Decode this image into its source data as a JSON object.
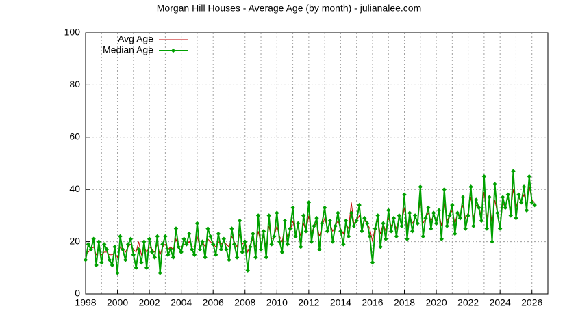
{
  "chart_data": {
    "type": "line",
    "title": "Morgan Hill Houses - Average Age (by month) - julianalee.com",
    "x": [
      1998,
      1998.17,
      1998.33,
      1998.5,
      1998.67,
      1998.83,
      1999,
      1999.17,
      1999.33,
      1999.5,
      1999.67,
      1999.83,
      2000,
      2000.17,
      2000.33,
      2000.5,
      2000.67,
      2000.83,
      2001,
      2001.17,
      2001.33,
      2001.5,
      2001.67,
      2001.83,
      2002,
      2002.17,
      2002.33,
      2002.5,
      2002.67,
      2002.83,
      2003,
      2003.17,
      2003.33,
      2003.5,
      2003.67,
      2003.83,
      2004,
      2004.17,
      2004.33,
      2004.5,
      2004.67,
      2004.83,
      2005,
      2005.17,
      2005.33,
      2005.5,
      2005.67,
      2005.83,
      2006,
      2006.17,
      2006.33,
      2006.5,
      2006.67,
      2006.83,
      2007,
      2007.17,
      2007.33,
      2007.5,
      2007.67,
      2007.83,
      2008,
      2008.17,
      2008.33,
      2008.5,
      2008.67,
      2008.83,
      2009,
      2009.17,
      2009.33,
      2009.5,
      2009.67,
      2009.83,
      2010,
      2010.17,
      2010.33,
      2010.5,
      2010.67,
      2010.83,
      2011,
      2011.17,
      2011.33,
      2011.5,
      2011.67,
      2011.83,
      2012,
      2012.17,
      2012.33,
      2012.5,
      2012.67,
      2012.83,
      2013,
      2013.17,
      2013.33,
      2013.5,
      2013.67,
      2013.83,
      2014,
      2014.17,
      2014.33,
      2014.5,
      2014.67,
      2014.83,
      2015,
      2015.17,
      2015.33,
      2015.5,
      2015.67,
      2015.83,
      2016,
      2016.17,
      2016.33,
      2016.5,
      2016.67,
      2016.83,
      2017,
      2017.17,
      2017.33,
      2017.5,
      2017.67,
      2017.83,
      2018,
      2018.17,
      2018.33,
      2018.5,
      2018.67,
      2018.83,
      2019,
      2019.17,
      2019.33,
      2019.5,
      2019.67,
      2019.83,
      2020,
      2020.17,
      2020.33,
      2020.5,
      2020.67,
      2020.83,
      2021,
      2021.17,
      2021.33,
      2021.5,
      2021.67,
      2021.83,
      2022,
      2022.17,
      2022.33,
      2022.5,
      2022.67,
      2022.83,
      2023,
      2023.17,
      2023.33,
      2023.5,
      2023.67,
      2023.83,
      2024,
      2024.17,
      2024.33,
      2024.5,
      2024.67,
      2024.83,
      2025,
      2025.17,
      2025.33,
      2025.5,
      2025.67,
      2025.83,
      2026,
      2026.17
    ],
    "series": [
      {
        "name": "Avg Age",
        "color": "#c00000",
        "markers": false,
        "values": [
          15,
          16,
          17,
          18,
          15,
          17,
          15,
          16,
          16,
          15,
          15,
          16,
          14,
          18,
          17,
          16,
          18,
          19,
          17,
          16,
          20,
          15,
          18,
          16,
          18,
          17,
          16,
          19,
          15,
          18,
          19,
          17,
          18,
          17,
          21,
          18,
          18,
          19,
          19,
          20,
          18,
          18,
          22,
          18,
          20,
          18,
          21,
          20,
          19,
          18,
          20,
          19,
          20,
          19,
          18,
          22,
          20,
          18,
          23,
          19,
          20,
          16,
          19,
          21,
          18,
          24,
          19,
          22,
          18,
          26,
          21,
          22,
          26,
          22,
          20,
          26,
          22,
          24,
          28,
          23,
          26,
          22,
          27,
          24,
          30,
          23,
          26,
          27,
          22,
          26,
          29,
          25,
          27,
          24,
          26,
          28,
          25,
          23,
          27,
          25,
          35,
          27,
          28,
          30,
          26,
          28,
          27,
          25,
          20,
          26,
          28,
          23,
          27,
          24,
          29,
          26,
          28,
          25,
          29,
          27,
          33,
          25,
          30,
          27,
          29,
          28,
          36,
          27,
          29,
          31,
          28,
          30,
          28,
          31,
          26,
          35,
          28,
          30,
          32,
          27,
          31,
          30,
          34,
          29,
          31,
          37,
          29,
          34,
          33,
          30,
          39,
          29,
          35,
          27,
          36,
          31,
          25,
          35,
          33,
          37,
          32,
          40,
          33,
          37,
          35,
          38,
          34,
          41,
          36,
          35
        ]
      },
      {
        "name": "Median Age",
        "color": "#00a000",
        "markers": true,
        "values": [
          13,
          19,
          17,
          21,
          11,
          20,
          12,
          19,
          17,
          13,
          11,
          18,
          8,
          22,
          17,
          13,
          19,
          21,
          15,
          10,
          17,
          12,
          20,
          10,
          21,
          16,
          14,
          22,
          8,
          19,
          22,
          15,
          17,
          14,
          25,
          18,
          16,
          21,
          19,
          23,
          17,
          15,
          27,
          17,
          20,
          14,
          25,
          22,
          19,
          15,
          23,
          17,
          21,
          17,
          13,
          25,
          19,
          14,
          28,
          16,
          20,
          9,
          18,
          23,
          14,
          30,
          17,
          24,
          14,
          30,
          19,
          22,
          31,
          20,
          16,
          28,
          19,
          25,
          33,
          22,
          27,
          18,
          30,
          24,
          35,
          20,
          26,
          29,
          17,
          27,
          33,
          24,
          28,
          20,
          26,
          31,
          24,
          19,
          28,
          22,
          31,
          26,
          28,
          34,
          24,
          29,
          27,
          22,
          12,
          25,
          30,
          18,
          27,
          21,
          32,
          24,
          29,
          22,
          30,
          26,
          38,
          21,
          31,
          24,
          30,
          27,
          41,
          22,
          29,
          33,
          25,
          31,
          27,
          32,
          21,
          40,
          26,
          30,
          34,
          23,
          31,
          29,
          37,
          25,
          30,
          41,
          26,
          36,
          33,
          28,
          45,
          25,
          37,
          20,
          42,
          31,
          25,
          37,
          33,
          38,
          30,
          47,
          29,
          38,
          35,
          41,
          32,
          45,
          35,
          34
        ]
      }
    ],
    "xlim": [
      1998,
      2027
    ],
    "xticks": [
      1998,
      2000,
      2002,
      2004,
      2006,
      2008,
      2010,
      2012,
      2014,
      2016,
      2018,
      2020,
      2022,
      2024,
      2026
    ],
    "ylim": [
      0,
      100
    ],
    "yticks": [
      0,
      20,
      40,
      60,
      80,
      100
    ],
    "grid": true,
    "legend": "top-left"
  }
}
